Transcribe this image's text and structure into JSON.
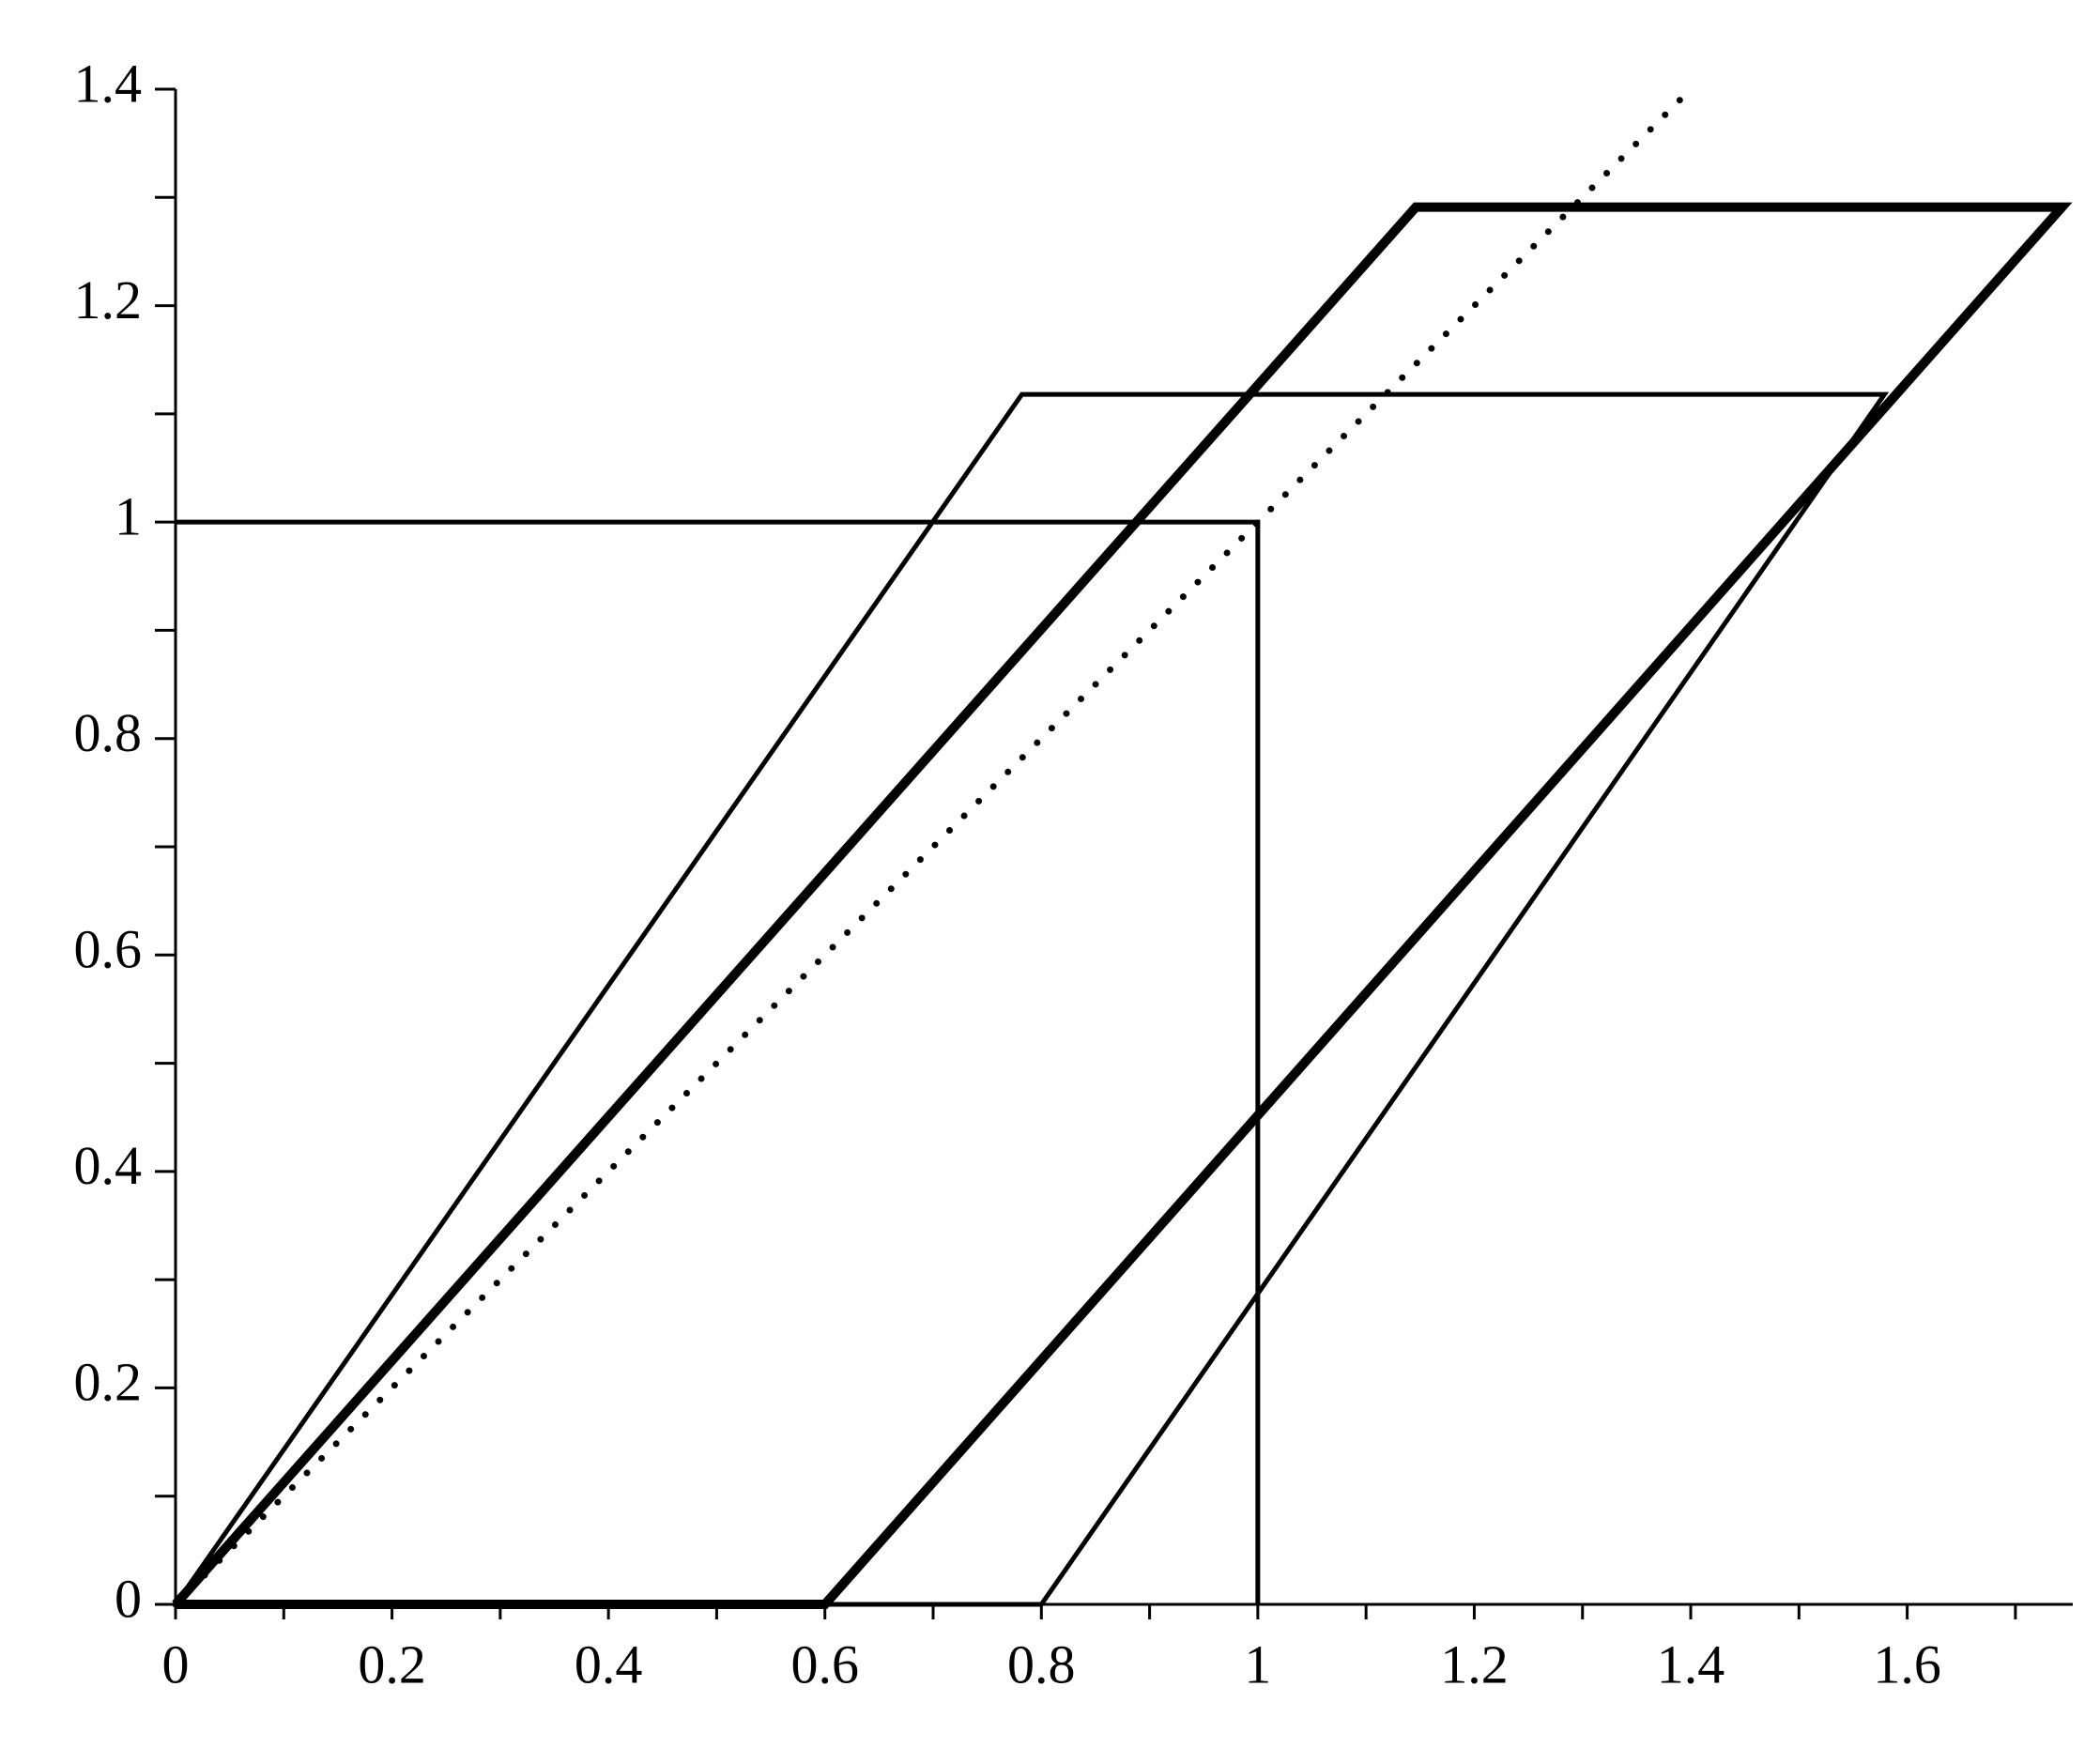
{
  "chart_data": {
    "type": "line",
    "xlim": [
      0,
      1.753
    ],
    "ylim": [
      0,
      1.4
    ],
    "xticks": [
      0,
      0.2,
      0.4,
      0.6,
      0.8,
      1,
      1.2,
      1.4,
      1.6
    ],
    "yticks": [
      0,
      0.2,
      0.4,
      0.6,
      0.8,
      1,
      1.2,
      1.4
    ],
    "xminorticks": [
      0.1,
      0.3,
      0.5,
      0.7,
      0.9,
      1.1,
      1.3,
      1.5,
      1.7
    ],
    "yminorticks": [
      0.1,
      0.3,
      0.5,
      0.7,
      0.9,
      1.1,
      1.3
    ],
    "series": [
      {
        "color": "#000000",
        "style": "thin",
        "x": [
          0,
          1,
          1
        ],
        "values": [
          1,
          1,
          0
        ]
      },
      {
        "color": "#000000",
        "style": "thin",
        "x": [
          0,
          0.782,
          1.579,
          0.8,
          0
        ],
        "values": [
          0,
          1.118,
          1.118,
          0,
          0
        ]
      },
      {
        "color": "#000000",
        "style": "thick",
        "x": [
          0,
          1.146,
          1.743,
          0.6,
          0
        ],
        "values": [
          0,
          1.291,
          1.291,
          0,
          0
        ]
      },
      {
        "color": "#000000",
        "style": "dotted",
        "x": [
          0,
          1.4
        ],
        "values": [
          0,
          1.4
        ]
      }
    ]
  }
}
